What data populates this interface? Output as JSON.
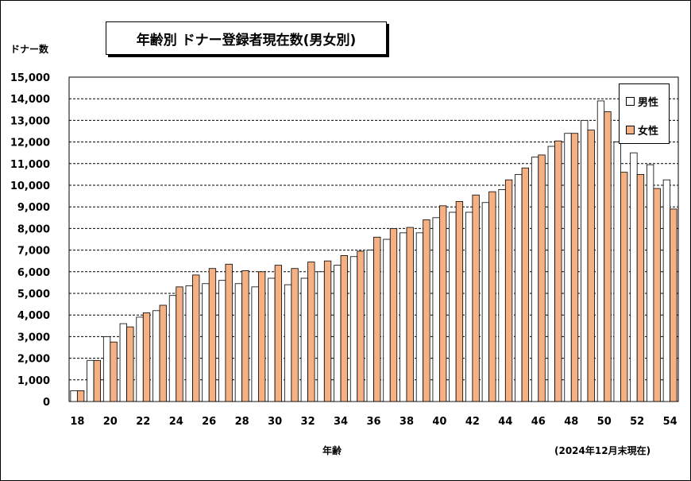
{
  "chart_data": {
    "type": "bar",
    "title": "年齢別 ドナー登録者現在数(男女別)",
    "ylabel": "ドナー数",
    "xlabel": "年齢",
    "note": "(2024年12月末現在)",
    "ylim": [
      0,
      15000
    ],
    "yticks": [
      0,
      1000,
      2000,
      3000,
      4000,
      5000,
      6000,
      7000,
      8000,
      9000,
      10000,
      11000,
      12000,
      13000,
      14000,
      15000
    ],
    "ytick_labels": [
      "0",
      "1,000",
      "2,000",
      "3,000",
      "4,000",
      "5,000",
      "6,000",
      "7,000",
      "8,000",
      "9,000",
      "10,000",
      "11,000",
      "12,000",
      "13,000",
      "14,000",
      "15,000"
    ],
    "categories": [
      18,
      19,
      20,
      21,
      22,
      23,
      24,
      25,
      26,
      27,
      28,
      29,
      30,
      31,
      32,
      33,
      34,
      35,
      36,
      37,
      38,
      39,
      40,
      41,
      42,
      43,
      44,
      45,
      46,
      47,
      48,
      49,
      50,
      51,
      52,
      53,
      54
    ],
    "xtick_labels": [
      "18",
      "20",
      "22",
      "24",
      "26",
      "28",
      "30",
      "32",
      "34",
      "36",
      "38",
      "40",
      "42",
      "44",
      "46",
      "48",
      "50",
      "52",
      "54"
    ],
    "grid": true,
    "legend_position": "top-right",
    "series": [
      {
        "name": "男性",
        "color": "#ffffff",
        "values": [
          500,
          1900,
          3000,
          3600,
          3900,
          4200,
          4900,
          5350,
          5450,
          5600,
          5450,
          5300,
          5700,
          5400,
          5700,
          6000,
          6300,
          6700,
          7000,
          7500,
          7800,
          7800,
          8500,
          8750,
          8750,
          9200,
          9800,
          10500,
          11300,
          11800,
          12400,
          13000,
          13900,
          12000,
          11500,
          10950,
          10250
        ]
      },
      {
        "name": "女性",
        "color": "#f5b183",
        "values": [
          500,
          1900,
          2750,
          3450,
          4100,
          4450,
          5300,
          5850,
          6150,
          6350,
          6050,
          6000,
          6300,
          6150,
          6450,
          6500,
          6750,
          6950,
          7600,
          8000,
          8050,
          8400,
          9050,
          9250,
          9550,
          9700,
          10250,
          10800,
          11400,
          12050,
          12400,
          12550,
          13400,
          10600,
          10500,
          9850,
          8900
        ]
      }
    ],
    "legend": {
      "male_label": "男性",
      "female_label": "女性"
    },
    "colors": {
      "male": "#ffffff",
      "female": "#f5b183",
      "bar_stroke": "#000000",
      "grid": "#000000"
    }
  }
}
